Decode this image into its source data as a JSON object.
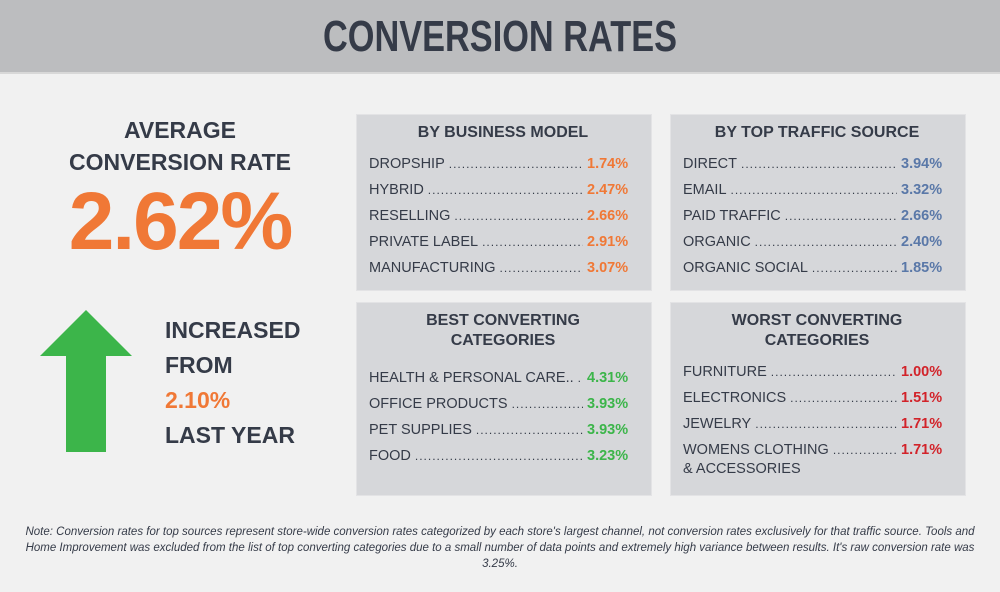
{
  "title": "CONVERSION RATES",
  "average": {
    "label_line1": "AVERAGE",
    "label_line2": "CONVERSION RATE",
    "value": "2.62%"
  },
  "increase": {
    "line1": "INCREASED",
    "line2": "FROM",
    "value": "2.10%",
    "line3": "LAST YEAR",
    "arrow_icon": "arrow-up-icon",
    "arrow_color": "#3cb54a"
  },
  "colors": {
    "orange": "#f07836",
    "blue": "#5a78a8",
    "green": "#3cb54a",
    "red": "#d2232a"
  },
  "business_model": {
    "title": "BY BUSINESS MODEL",
    "rows": [
      {
        "name": "DROPSHIP",
        "value": "1.74%"
      },
      {
        "name": "HYBRID",
        "value": "2.47%"
      },
      {
        "name": "RESELLING",
        "value": "2.66%"
      },
      {
        "name": "PRIVATE LABEL",
        "value": "2.91%"
      },
      {
        "name": "MANUFACTURING",
        "value": "3.07%"
      }
    ]
  },
  "traffic_source": {
    "title": "BY TOP TRAFFIC SOURCE",
    "rows": [
      {
        "name": "DIRECT",
        "value": "3.94%"
      },
      {
        "name": "EMAIL",
        "value": "3.32%"
      },
      {
        "name": "PAID TRAFFIC",
        "value": "2.66%"
      },
      {
        "name": "ORGANIC",
        "value": "2.40%"
      },
      {
        "name": "ORGANIC SOCIAL",
        "value": "1.85%"
      }
    ]
  },
  "best": {
    "title_line1": "BEST CONVERTING",
    "title_line2": "CATEGORIES",
    "rows": [
      {
        "name": "HEALTH & PERSONAL CARE..",
        "value": "4.31%"
      },
      {
        "name": "OFFICE PRODUCTS",
        "value": "3.93%"
      },
      {
        "name": "PET SUPPLIES",
        "value": "3.93%"
      },
      {
        "name": "FOOD",
        "value": "3.23%"
      }
    ]
  },
  "worst": {
    "title_line1": "WORST CONVERTING",
    "title_line2": "CATEGORIES",
    "rows": [
      {
        "name": "FURNITURE",
        "value": "1.00%"
      },
      {
        "name": "ELECTRONICS",
        "value": "1.51%"
      },
      {
        "name": "JEWELRY",
        "value": "1.71%"
      },
      {
        "name": "WOMENS CLOTHING",
        "value": "1.71%",
        "name_line2": "& ACCESSORIES"
      }
    ]
  },
  "note": "Note: Conversion rates for top sources represent store-wide conversion rates categorized by each store's largest channel, not conversion rates exclusively for that traffic source. Tools and Home Improvement was excluded from the list of top converting categories due to a small number of data points and extremely high variance between results.  It's raw conversion rate was 3.25%."
}
